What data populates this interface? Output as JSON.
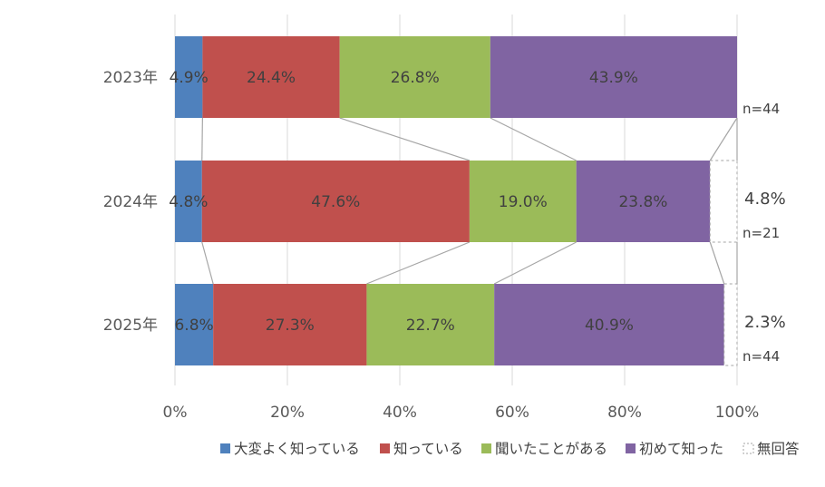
{
  "chart_data": {
    "type": "bar",
    "orientation": "horizontal",
    "stacked": true,
    "title": "",
    "xlabel": "",
    "ylabel": "",
    "xlim": [
      0,
      100
    ],
    "x_ticks": [
      "0%",
      "20%",
      "40%",
      "60%",
      "80%",
      "100%"
    ],
    "categories": [
      "2023年",
      "2024年",
      "2025年"
    ],
    "sample_sizes": [
      "n=44",
      "n=21",
      "n=44"
    ],
    "series": [
      {
        "name": "大変よく知っている",
        "color": "#4F81BD",
        "values": [
          4.9,
          4.8,
          6.8
        ],
        "labels": [
          "4.9%",
          "4.8%",
          "6.8%"
        ]
      },
      {
        "name": "知っている",
        "color": "#C0504D",
        "values": [
          24.4,
          47.6,
          27.3
        ],
        "labels": [
          "24.4%",
          "47.6%",
          "27.3%"
        ]
      },
      {
        "name": "聞いたことがある",
        "color": "#9BBB59",
        "values": [
          26.8,
          19.0,
          22.7
        ],
        "labels": [
          "26.8%",
          "19.0%",
          "22.7%"
        ]
      },
      {
        "name": "初めて知った",
        "color": "#8064A2",
        "values": [
          43.9,
          23.8,
          40.9
        ],
        "labels": [
          "43.9%",
          "23.8%",
          "40.9%"
        ]
      },
      {
        "name": "無回答",
        "color": "#ffffff",
        "values": [
          0,
          4.8,
          2.3
        ],
        "labels": [
          "",
          "4.8%",
          "2.3%"
        ]
      }
    ],
    "grid": true,
    "legend_position": "bottom",
    "series_lines": true
  }
}
